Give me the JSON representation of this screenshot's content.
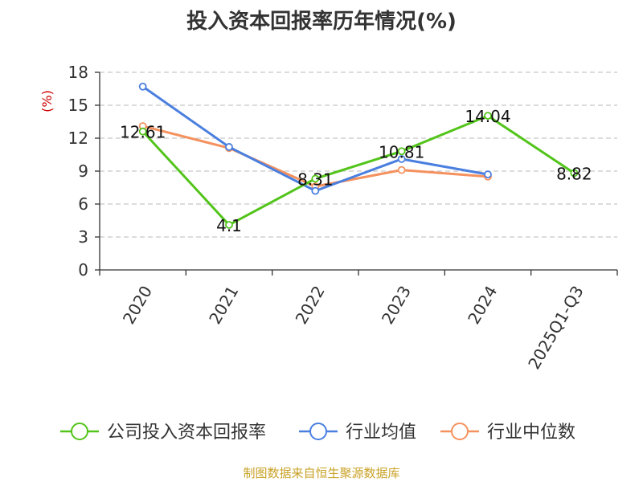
{
  "title": "投入资本回报率历年情况(%)",
  "source": "制图数据来自恒生聚源数据库",
  "chart_data": {
    "type": "line",
    "categories": [
      "2020",
      "2021",
      "2022",
      "2023",
      "2024",
      "2025Q1-Q3"
    ],
    "ylabel": "(%)",
    "ylim": [
      0,
      18
    ],
    "yticks": [
      0,
      3,
      6,
      9,
      12,
      15,
      18
    ],
    "grid": true,
    "legend_position": "bottom",
    "series": [
      {
        "name": "公司投入资本回报率",
        "color": "#52c41a",
        "values": [
          12.61,
          4.1,
          8.31,
          10.81,
          14.04,
          8.82
        ],
        "labels": [
          "12.61",
          "4.1",
          "8.31",
          "10.81",
          "14.04",
          "8.82"
        ]
      },
      {
        "name": "行业均值",
        "color": "#4a7fe0",
        "values": [
          16.7,
          11.2,
          7.2,
          10.1,
          8.7,
          null
        ]
      },
      {
        "name": "行业中位数",
        "color": "#f4915e",
        "values": [
          13.1,
          11.1,
          7.6,
          9.1,
          8.5,
          null
        ]
      }
    ]
  }
}
